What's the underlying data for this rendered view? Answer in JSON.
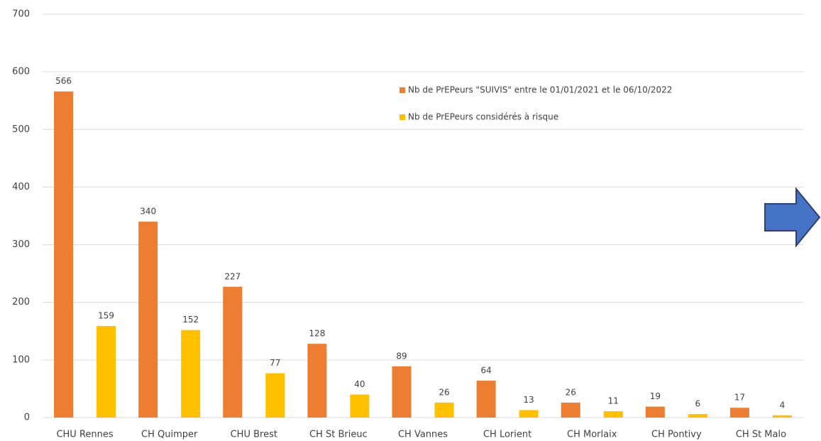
{
  "chart_data": {
    "type": "bar",
    "categories": [
      "CHU Rennes",
      "CH Quimper",
      "CHU Brest",
      "CH St Brieuc",
      "CH Vannes",
      "CH Lorient",
      "CH Morlaix",
      "CH Pontivy",
      "CH St Malo"
    ],
    "series": [
      {
        "name": "Nb de PrEPeurs \"SUIVIS\" entre le 01/01/2021 et le 06/10/2022",
        "color": "#ed7d31",
        "values": [
          566,
          340,
          227,
          128,
          89,
          64,
          26,
          19,
          17
        ]
      },
      {
        "name": "Nb de PrEPeurs considérés à risque",
        "color": "#ffc000",
        "values": [
          159,
          152,
          77,
          40,
          26,
          13,
          11,
          6,
          4
        ]
      }
    ],
    "ylim": [
      0,
      700
    ],
    "yticks": [
      0,
      100,
      200,
      300,
      400,
      500,
      600,
      700
    ],
    "grid": true,
    "legend": "top-right"
  }
}
